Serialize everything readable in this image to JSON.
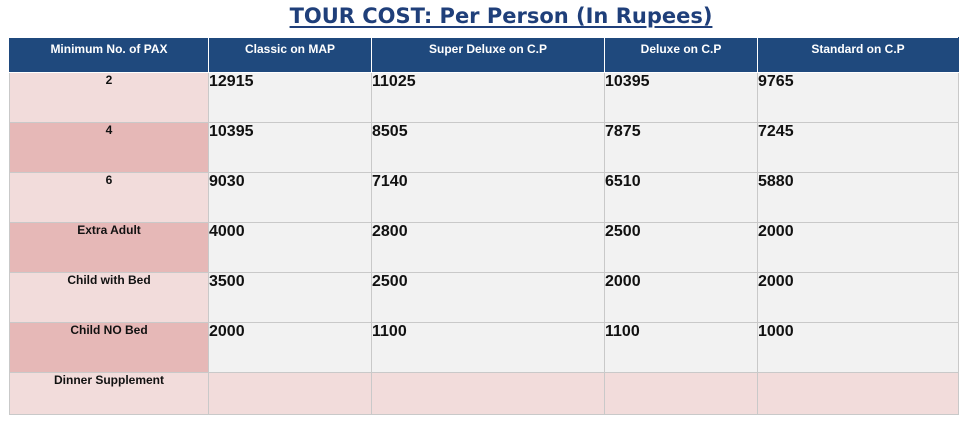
{
  "title": "TOUR COST: Per Person (In Rupees)",
  "columns": [
    "Minimum No. of PAX",
    "Classic on MAP",
    "Super Deluxe on C.P",
    "Deluxe on C.P",
    "Standard on C.P"
  ],
  "rows": [
    {
      "label": "2",
      "values": [
        "12915",
        "11025",
        "10395",
        "9765"
      ]
    },
    {
      "label": "4",
      "values": [
        "10395",
        "8505",
        "7875",
        "7245"
      ]
    },
    {
      "label": "6",
      "values": [
        "9030",
        "7140",
        "6510",
        "5880"
      ]
    },
    {
      "label": "Extra Adult",
      "values": [
        "4000",
        "2800",
        "2500",
        "2000"
      ]
    },
    {
      "label": "Child with Bed",
      "values": [
        "3500",
        "2500",
        "2000",
        "2000"
      ]
    },
    {
      "label": "Child NO Bed",
      "values": [
        "2000",
        "1100",
        "1100",
        "1000"
      ]
    },
    {
      "label": "Dinner Supplement",
      "values": [
        "",
        "",
        "",
        ""
      ]
    }
  ],
  "colors": {
    "header_bg": "#1f497d",
    "title": "#1f3f7a",
    "label_light": "#f2dcdb",
    "label_dark": "#e6b8b7",
    "cell_bg": "#f2f2f2"
  }
}
